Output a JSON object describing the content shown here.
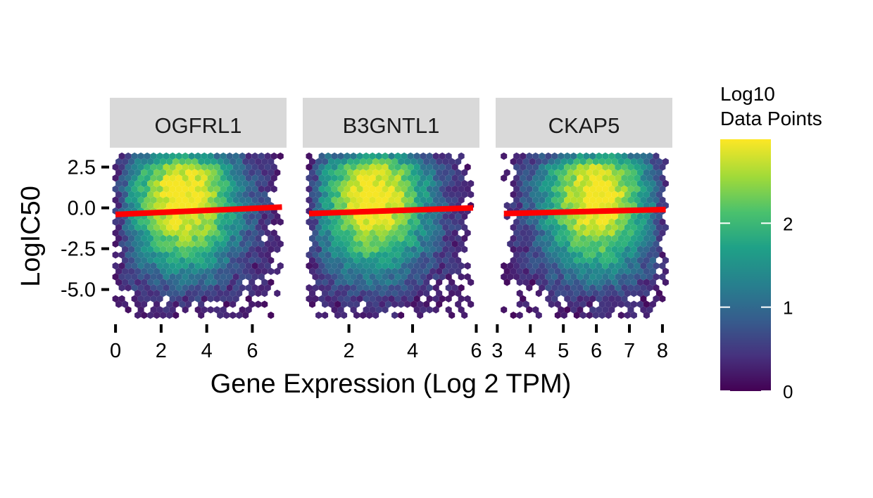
{
  "chart_data": {
    "type": "heatmap",
    "subtype": "hexbin-facets",
    "xlabel": "Gene Expression (Log 2 TPM)",
    "ylabel": "LogIC50",
    "y_ticks": [
      2.5,
      0.0,
      -2.5,
      -5.0
    ],
    "y_tick_labels": [
      "2.5",
      "0.0",
      "-2.5",
      "-5.0"
    ],
    "ylim": [
      -7.0,
      3.6
    ],
    "fit_line_color": "#ff0000",
    "colormap": "viridis",
    "panels": [
      {
        "name": "OGFRL1",
        "xlim": [
          -0.25,
          7.5
        ],
        "x_ticks": [
          0,
          2,
          4,
          6
        ],
        "x_tick_labels": [
          "0",
          "2",
          "4",
          "6"
        ],
        "data_x_range": [
          0.0,
          7.3
        ],
        "density_center": [
          3.0,
          0.5
        ],
        "fit_line": {
          "x": [
            0.0,
            7.3
          ],
          "y": [
            -0.4,
            0.05
          ]
        }
      },
      {
        "name": "B3GNTL1",
        "xlim": [
          0.55,
          6.1
        ],
        "x_ticks": [
          2,
          4,
          6
        ],
        "x_tick_labels": [
          "2",
          "4",
          "6"
        ],
        "data_x_range": [
          0.75,
          5.9
        ],
        "density_center": [
          2.8,
          0.5
        ],
        "fit_line": {
          "x": [
            0.75,
            5.9
          ],
          "y": [
            -0.35,
            -0.0
          ]
        }
      },
      {
        "name": "CKAP5",
        "xlim": [
          2.95,
          8.3
        ],
        "x_ticks": [
          3,
          4,
          5,
          6,
          7,
          8
        ],
        "x_tick_labels": [
          "3",
          "4",
          "5",
          "6",
          "7",
          "8"
        ],
        "data_x_range": [
          3.2,
          8.1
        ],
        "density_center": [
          6.0,
          0.5
        ],
        "fit_line": {
          "x": [
            3.2,
            8.1
          ],
          "y": [
            -0.35,
            -0.1
          ]
        }
      }
    ],
    "legend": {
      "title_line1": "Log10",
      "title_line2": "Data Points",
      "range": [
        0,
        3.0
      ],
      "ticks": [
        0,
        1,
        2
      ],
      "tick_labels": [
        "0",
        "1",
        "2"
      ],
      "placement": "right"
    }
  }
}
